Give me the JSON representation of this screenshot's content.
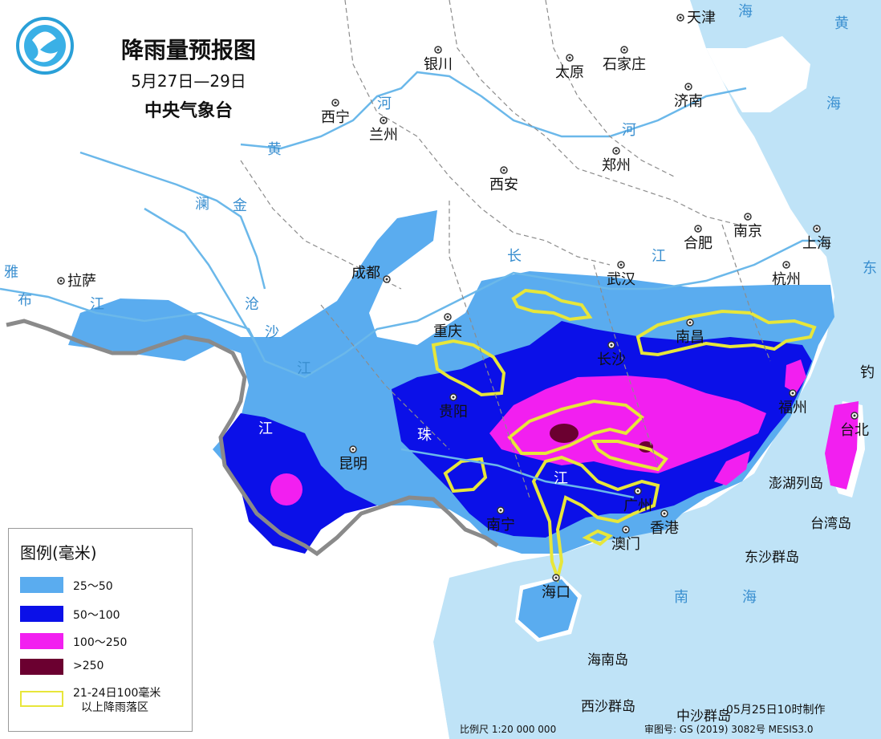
{
  "title": "降雨量预报图",
  "date_range": "5月27日—29日",
  "issuer": "中央气象台",
  "colors": {
    "land": "#ffffff",
    "sea": "#bfe3f7",
    "rain_25_50": "#5aacef",
    "rain_50_100": "#0b10e8",
    "rain_100_250": "#f21ff0",
    "rain_250": "#6b0030",
    "outline_prev": "#e7e63a",
    "river": "#6bb8ea",
    "border": "#9a9a9a"
  },
  "legend": {
    "title": "图例(毫米)",
    "items": [
      {
        "label": "25～50"
      },
      {
        "label": "50～100"
      },
      {
        "label": "100～250"
      },
      {
        "label": ">250"
      },
      {
        "label_line1": "21-24日100毫米",
        "label_line2": "以上降雨落区"
      }
    ]
  },
  "cities": [
    {
      "name": "天津"
    },
    {
      "name": "银川"
    },
    {
      "name": "太原"
    },
    {
      "name": "石家庄"
    },
    {
      "name": "济南"
    },
    {
      "name": "西宁"
    },
    {
      "name": "兰州"
    },
    {
      "name": "郑州"
    },
    {
      "name": "西安"
    },
    {
      "name": "合肥"
    },
    {
      "name": "南京"
    },
    {
      "name": "上海"
    },
    {
      "name": "拉萨"
    },
    {
      "name": "成都"
    },
    {
      "name": "武汉"
    },
    {
      "name": "杭州"
    },
    {
      "name": "重庆"
    },
    {
      "name": "南昌"
    },
    {
      "name": "长沙"
    },
    {
      "name": "福州"
    },
    {
      "name": "贵阳"
    },
    {
      "name": "台北"
    },
    {
      "name": "昆明"
    },
    {
      "name": "广州"
    },
    {
      "name": "南宁"
    },
    {
      "name": "香港"
    },
    {
      "name": "澳门"
    },
    {
      "name": "海口"
    }
  ],
  "map_labels": {
    "huang": "黄",
    "he1": "河",
    "he2": "河",
    "lan": "澜",
    "jin": "金",
    "cang": "沧",
    "sha": "沙",
    "jiang_w": "江",
    "bu": "布",
    "jiang_tibet": "江",
    "changjiang_chang": "长",
    "changjiang_jiang": "江",
    "zhu": "珠",
    "jiang_s": "江",
    "jiang_y": "江",
    "ya": "雅",
    "sea_hai1": "海",
    "sea_huang": "黄",
    "sea_hai2": "海",
    "sea_dong": "东",
    "sea_diao": "钓",
    "sea_nan": "南",
    "sea_hai3": "海",
    "penghu": "澎湖列岛",
    "taiwan": "台湾岛",
    "dongsha": "东沙群岛",
    "hainan": "海南岛",
    "xisha": "西沙群岛",
    "zhongsha": "中沙群岛"
  },
  "footer": {
    "made": "05月25日10时制作",
    "scale": "比例尺 1:20 000 000",
    "review": "审图号: GS (2019) 3082号 MESIS3.0"
  }
}
